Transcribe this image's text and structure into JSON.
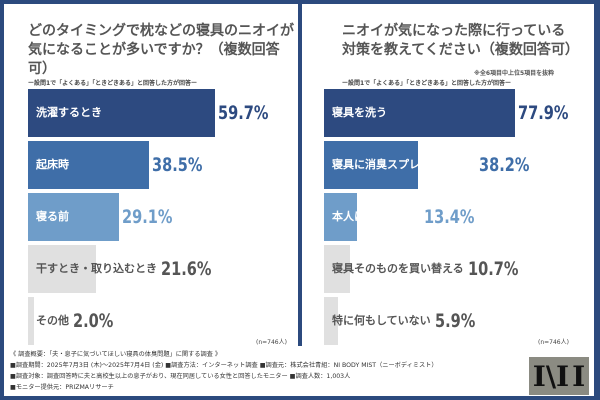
{
  "chart_data": [
    {
      "type": "bar",
      "orientation": "horizontal",
      "title": "どのタイミングで枕などの寝具のニオイが気になることが多いですか？（複数回答可）",
      "subtitle": "ー設問1で「よくある」「ときどきある」と回答した方が回答ー",
      "categories": [
        "洗濯するとき",
        "起床時",
        "寝る前",
        "干すとき・取り込むとき",
        "その他"
      ],
      "values": [
        59.7,
        38.5,
        29.1,
        21.6,
        2.0
      ],
      "value_labels": [
        "59.7%",
        "38.5%",
        "29.1%",
        "21.6%",
        "2.0%"
      ],
      "bar_colors": [
        "#2d4a80",
        "#3f6ea8",
        "#6f9dc9",
        "#e0e0e0",
        "#e0e0e0"
      ],
      "label_colors": [
        "#ffffff",
        "#ffffff",
        "#ffffff",
        "#555555",
        "#555555"
      ],
      "value_colors": [
        "#2d4a80",
        "#3f6ea8",
        "#6f9dc9",
        "#555555",
        "#555555"
      ],
      "note": "(n=746人)"
    },
    {
      "type": "bar",
      "orientation": "horizontal",
      "title": "ニオイが気になった際に行っている対策を教えてください（複数回答可）",
      "subtitle": "ー設問1で「よくある」「ときどきある」と回答した方が回答ー",
      "annotation": "※全6項目中上位5項目を抜粋",
      "categories": [
        "寝具を洗う",
        "寝具に消臭スプレーをかける",
        "本人に直接伝える",
        "寝具そのものを買い替える",
        "特に何もしていない"
      ],
      "values": [
        77.9,
        38.2,
        13.4,
        10.7,
        5.9
      ],
      "value_labels": [
        "77.9%",
        "38.2%",
        "13.4%",
        "10.7%",
        "5.9%"
      ],
      "bar_colors": [
        "#2d4a80",
        "#3f6ea8",
        "#6f9dc9",
        "#e0e0e0",
        "#e0e0e0"
      ],
      "label_colors": [
        "#ffffff",
        "#ffffff",
        "#ffffff",
        "#555555",
        "#555555"
      ],
      "value_colors": [
        "#2d4a80",
        "#3f6ea8",
        "#6f9dc9",
        "#555555",
        "#555555"
      ],
      "note": "(n=746人)"
    }
  ],
  "footer": {
    "lines": [
      "《 調査概要：「夫・息子に気づいてほしい寝具の体臭問題」に関する調査 》",
      "■調査期間：2025年7月3日 (木)〜2025年7月4日 (金)  ■調査方法：インターネット調査  ■調査元：株式会社青組：NI BODY MIST（ニーボディミスト）",
      "■調査対象：調査回答時に夫と高校生以上の息子がおり、現在同居している女性と回答したモニター  ■調査人数：1,003人",
      "■モニター提供元：PRIZMAリサーチ"
    ],
    "logo_text": "NI"
  }
}
